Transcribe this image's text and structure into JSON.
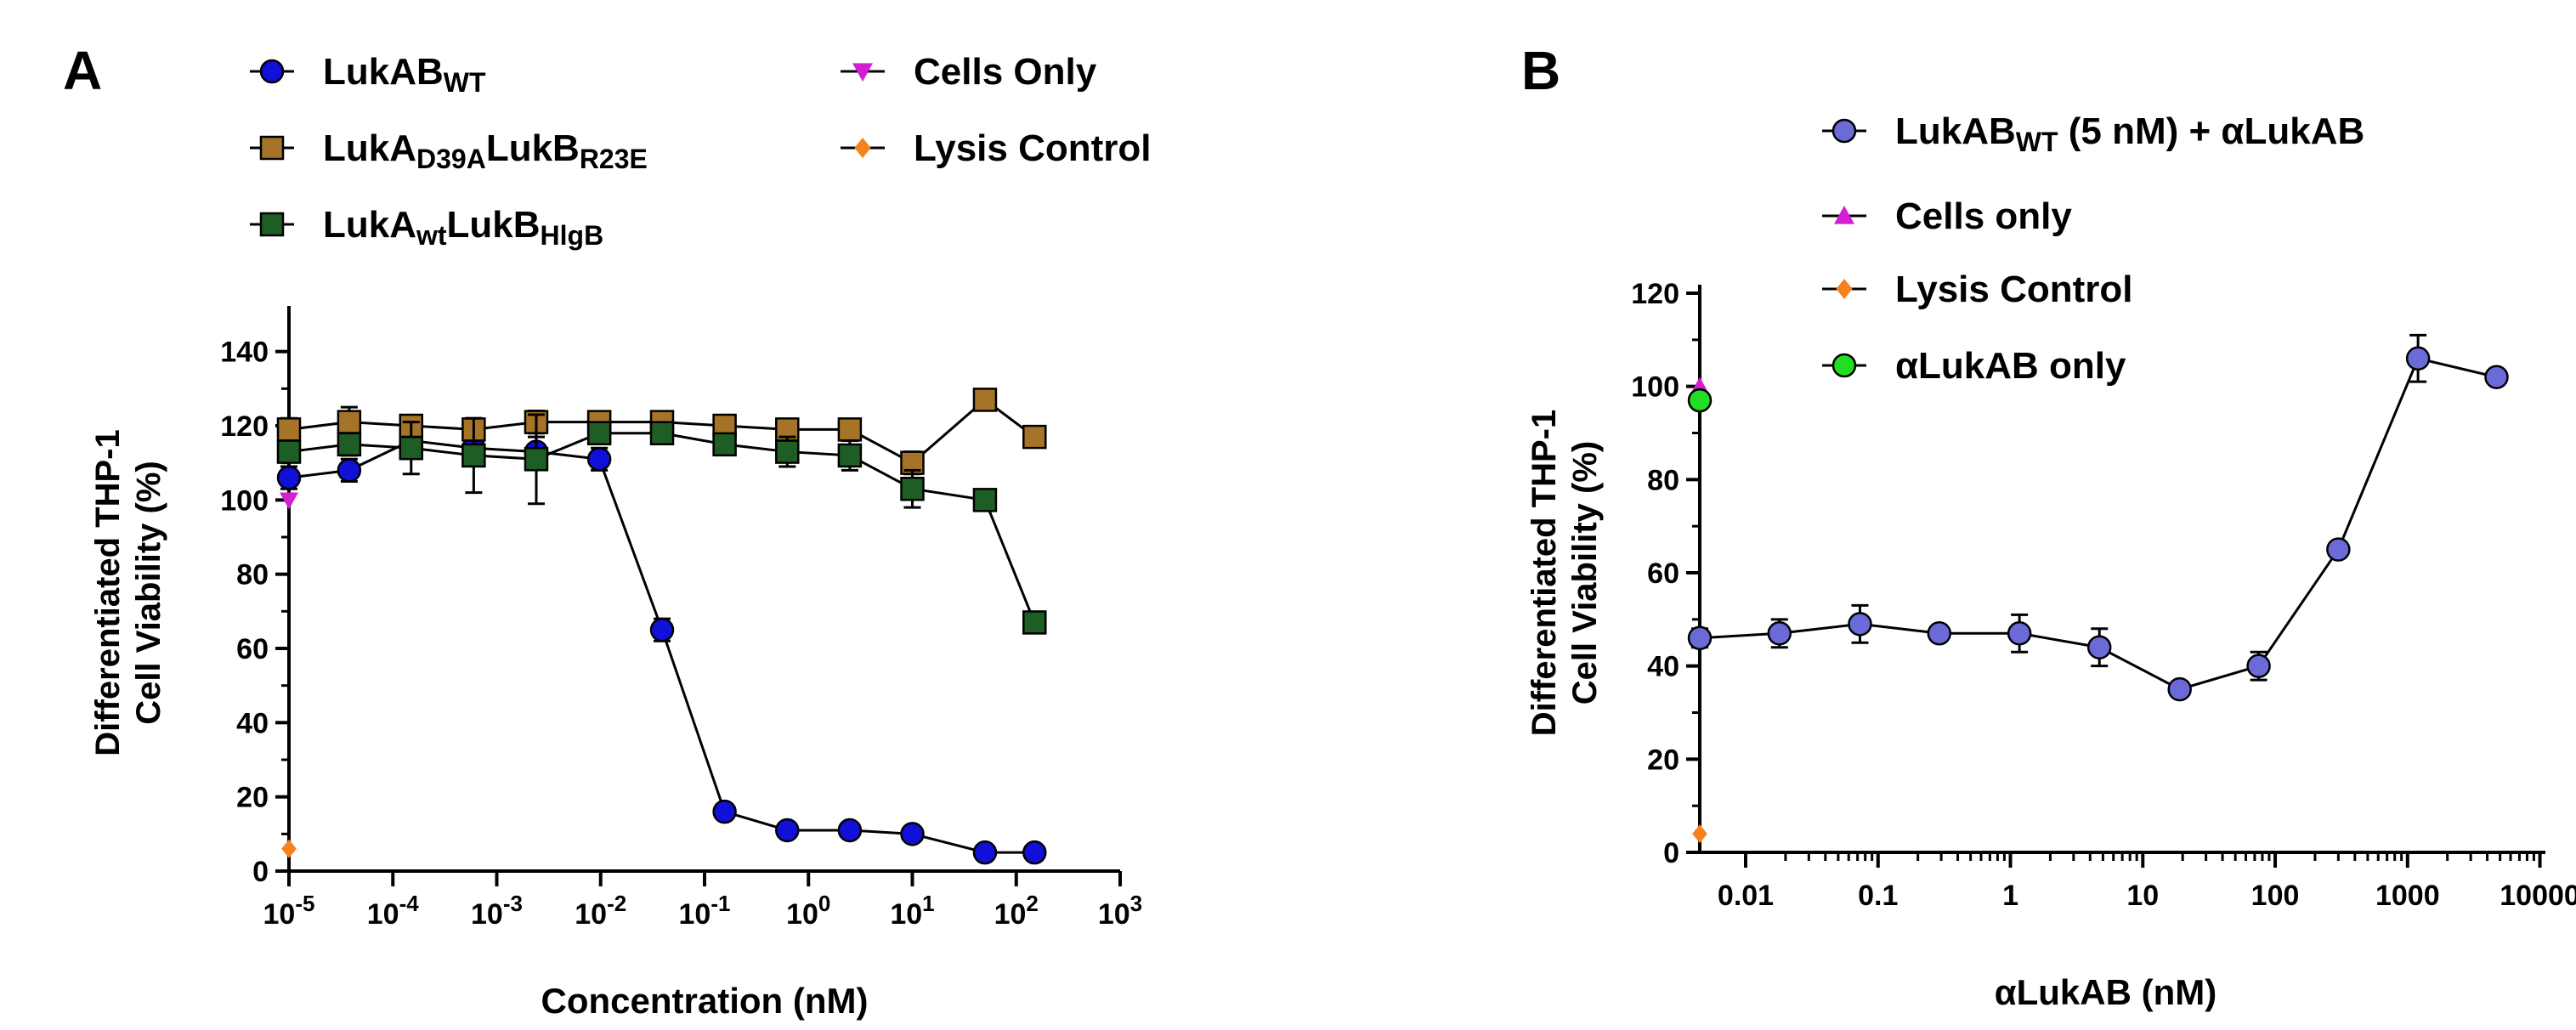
{
  "chart_data": [
    {
      "panel_label": "A",
      "type": "line",
      "xscale": "log",
      "xlabel": "Concentration (nM)",
      "ylabel": [
        "Differentiated THP-1",
        "Cell Viability (%)"
      ],
      "xlim": [
        1e-05,
        1000
      ],
      "ylim": [
        0,
        150
      ],
      "yticks": [
        0,
        20,
        40,
        60,
        80,
        100,
        120,
        140
      ],
      "xticks": [
        {
          "base": "10",
          "exp": "-5"
        },
        {
          "base": "10",
          "exp": "-4"
        },
        {
          "base": "10",
          "exp": "-3"
        },
        {
          "base": "10",
          "exp": "-2"
        },
        {
          "base": "10",
          "exp": "-1"
        },
        {
          "base": "10",
          "exp": "0"
        },
        {
          "base": "10",
          "exp": "1"
        },
        {
          "base": "10",
          "exp": "2"
        },
        {
          "base": "10",
          "exp": "3"
        }
      ],
      "legend_position": "top",
      "series": [
        {
          "name": "LukABWT",
          "label_main": "LukAB",
          "label_sub": "WT",
          "color": "#1010d8",
          "marker": "circle",
          "x": [
            1e-05,
            3.8e-05,
            0.00015,
            0.0006,
            0.0024,
            0.0097,
            0.039,
            0.156,
            0.625,
            2.5,
            10,
            50,
            150
          ],
          "y": [
            106,
            108,
            116,
            114,
            113,
            111,
            65,
            16,
            11,
            11,
            10,
            5,
            5
          ],
          "err": [
            3,
            3,
            4,
            4,
            4,
            3,
            3,
            1,
            1,
            1,
            1,
            1,
            1
          ]
        },
        {
          "name": "LukAD39ALukBR23E",
          "label_parts": [
            {
              "t": "LukA",
              "s": false
            },
            {
              "t": "D39A",
              "s": true
            },
            {
              "t": "LukB",
              "s": false
            },
            {
              "t": "R23E",
              "s": true
            }
          ],
          "color": "#a67428",
          "marker": "square",
          "x": [
            1e-05,
            3.8e-05,
            0.00015,
            0.0006,
            0.0024,
            0.0097,
            0.039,
            0.156,
            0.625,
            2.5,
            10,
            50,
            150
          ],
          "y": [
            119,
            121,
            120,
            119,
            121,
            121,
            121,
            120,
            119,
            119,
            110,
            127,
            117
          ],
          "err": [
            3,
            4,
            2,
            3,
            3,
            2,
            2,
            2,
            2,
            2,
            3,
            1,
            1
          ]
        },
        {
          "name": "LukAwtLukBHlgB",
          "label_parts": [
            {
              "t": "LukA",
              "s": false
            },
            {
              "t": "wt",
              "s": true
            },
            {
              "t": "LukB",
              "s": false
            },
            {
              "t": "HlgB",
              "s": true
            }
          ],
          "color": "#1e5e24",
          "marker": "square",
          "x": [
            1e-05,
            3.8e-05,
            0.00015,
            0.0006,
            0.0024,
            0.0097,
            0.039,
            0.156,
            0.625,
            2.5,
            10,
            50,
            150
          ],
          "y": [
            113,
            115,
            114,
            112,
            111,
            118,
            118,
            115,
            113,
            112,
            103,
            100,
            67
          ],
          "err": [
            2,
            3,
            7,
            10,
            12,
            2,
            2,
            2,
            4,
            4,
            5,
            1,
            1
          ],
          "capless_err": [
            false,
            false,
            false,
            true,
            true,
            false,
            false,
            false,
            false,
            false,
            false,
            false,
            false
          ]
        },
        {
          "name": "Cells Only",
          "color": "#d21fd2",
          "marker": "triangle-down",
          "x": [
            1e-05
          ],
          "y": [
            100
          ],
          "err": [
            0
          ]
        },
        {
          "name": "Lysis Control",
          "color": "#f5821f",
          "marker": "diamond",
          "x": [
            1e-05
          ],
          "y": [
            6
          ],
          "err": [
            0
          ]
        }
      ]
    },
    {
      "panel_label": "B",
      "type": "line",
      "xscale": "log",
      "xlabel": "αLukAB (nM)",
      "ylabel": [
        "Differentiated THP-1",
        "Cell Viability (%)"
      ],
      "xlim": [
        0.0045,
        11000
      ],
      "ylim": [
        0,
        120
      ],
      "yticks": [
        0,
        20,
        40,
        60,
        80,
        100,
        120
      ],
      "xticks": [
        "0.01",
        "0.1",
        "1",
        "10",
        "100",
        "1000",
        "10000"
      ],
      "legend_position": "top",
      "series": [
        {
          "name": "LukABWT (5 nM) + αLukAB",
          "label_parts": [
            {
              "t": "LukAB",
              "s": false
            },
            {
              "t": "WT",
              "s": true
            },
            {
              "t": " (5 nM) + αLukAB",
              "s": false
            }
          ],
          "color": "#6a6ad8",
          "marker": "circle",
          "x": [
            0.0045,
            0.018,
            0.073,
            0.29,
            1.17,
            4.7,
            19,
            75,
            300,
            1200,
            4700
          ],
          "y": [
            46,
            47,
            49,
            47,
            47,
            44,
            35,
            40,
            65,
            106,
            102
          ],
          "err": [
            2,
            3,
            4,
            1,
            4,
            4,
            1,
            3,
            1,
            5,
            1
          ]
        },
        {
          "name": "Cells only",
          "color": "#d21fd2",
          "marker": "triangle",
          "x": [
            0.0045
          ],
          "y": [
            100
          ],
          "err": [
            0
          ]
        },
        {
          "name": "Lysis Control",
          "color": "#f5821f",
          "marker": "diamond",
          "x": [
            0.0045
          ],
          "y": [
            4
          ],
          "err": [
            0
          ]
        },
        {
          "name": "αLukAB only",
          "color": "#22dd22",
          "marker": "circle",
          "x": [
            0.0045
          ],
          "y": [
            97
          ],
          "err": [
            0
          ]
        }
      ]
    }
  ]
}
